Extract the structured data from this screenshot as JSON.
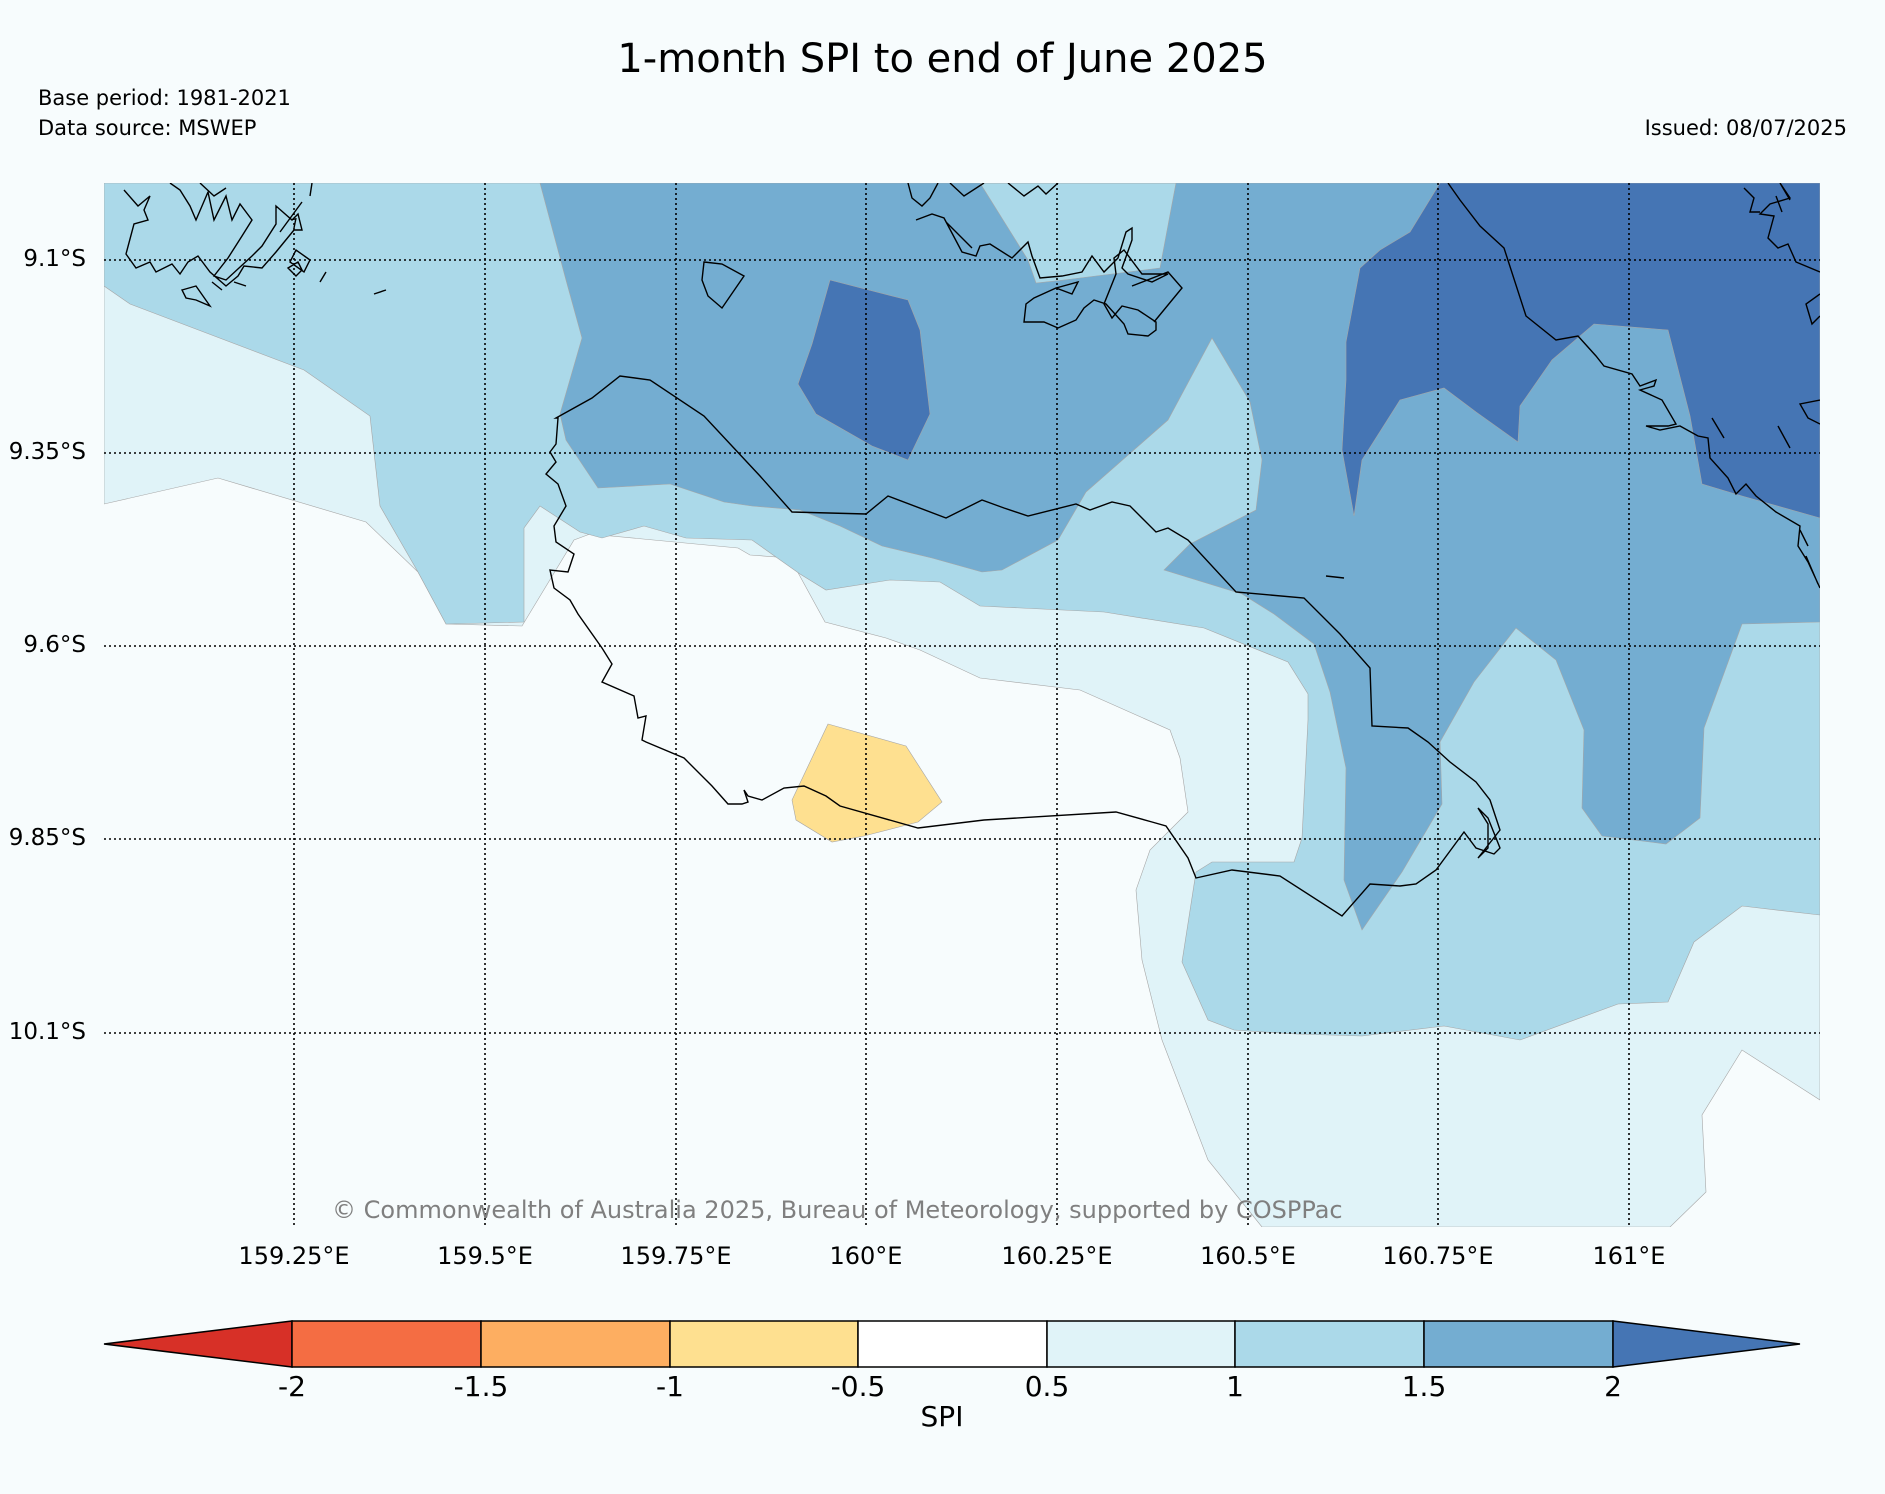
{
  "title": "1-month SPI to end of June 2025",
  "base_period": "Base period: 1981-2021",
  "data_source": "Data source: MSWEP",
  "issued": "Issued: 08/07/2025",
  "copyright": "© Commonwealth of Australia 2025, Bureau of Meteorology, supported by COSPPac",
  "map": {
    "lat_labels": [
      "9.1°S",
      "9.35°S",
      "9.6°S",
      "9.85°S",
      "10.1°S"
    ],
    "lon_labels": [
      "159.25°E",
      "159.5°E",
      "159.75°E",
      "160°E",
      "160.25°E",
      "160.5°E",
      "160.75°E",
      "161°E"
    ],
    "extent": {
      "lon_min": 159.0,
      "lon_max": 161.25,
      "lat_max": -9.0,
      "lat_min": -10.35
    },
    "gridlines": true
  },
  "colorbar": {
    "label": "SPI",
    "extend": "both",
    "tick_labels": [
      "-2",
      "-1.5",
      "-1",
      "-0.5",
      "0.5",
      "1",
      "1.5",
      "2"
    ],
    "colors": [
      "#d73027",
      "#f46d43",
      "#fdae61",
      "#fee090",
      "#ffffff",
      "#e0f3f8",
      "#abd9e9",
      "#74add1",
      "#4575b4"
    ]
  },
  "colors": {
    "background": "#f7fcfd",
    "spi_above_2": "#4575b4",
    "spi_1_5_to_2": "#74add1",
    "spi_1_to_1_5": "#abd9e9",
    "spi_0_5_to_1": "#e0f3f8",
    "spi_near_normal": "#f7fcfd",
    "spi_minus1_to_minus0_5": "#fee090"
  }
}
